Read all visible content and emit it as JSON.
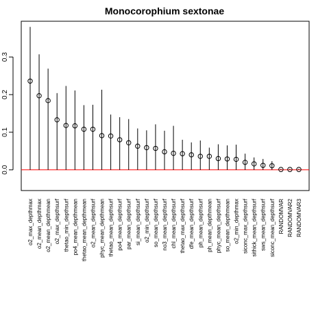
{
  "chart_data": {
    "type": "scatter",
    "title": "Monocorophium sextonae",
    "xlabel": "",
    "ylabel": "",
    "ylim": [
      -0.055,
      0.395
    ],
    "yticks": [
      "0.0",
      "0.1",
      "0.2",
      "0.3"
    ],
    "ytick_values": [
      0.0,
      0.1,
      0.2,
      0.3
    ],
    "grid": false,
    "reference_line": {
      "y": 0,
      "color": "#ff0000"
    },
    "marker_color": "#000000",
    "categories": [
      "o2_max_depthmax",
      "o2_mean_depthmax",
      "o2_mean_depthmean",
      "o2_max_depthsurf",
      "thetao_min_depthsurf",
      "po4_mean_depthmean",
      "thetao_mean_depthmean",
      "o2_mean_depthsurf",
      "phyc_mean_depthmean",
      "thetao_mean_depthsurf",
      "po4_mean_depthsurf",
      "par_mean_depthsurf",
      "si_mean_depthsurf",
      "o2_min_depthsurf",
      "so_mean_depthsurf",
      "no3_mean_depthsurf",
      "chl_mean_depthsurf",
      "thetao_max_depthsurf",
      "dfe_mean_depthsurf",
      "ph_mean_depthsurf",
      "ph_mean_depthmean",
      "phyc_mean_depthsurf",
      "so_mean_depthmean",
      "o2_min_depthmax",
      "siconc_max_depthsurf",
      "sithick_mean_depthsurf",
      "sws_mean_depthsurf",
      "siconc_mean_depthsurf",
      "RANDOMVAR",
      "RANDOMVAR2",
      "RANDOMVAR3"
    ],
    "values": [
      0.236,
      0.197,
      0.184,
      0.133,
      0.118,
      0.117,
      0.108,
      0.108,
      0.091,
      0.09,
      0.08,
      0.072,
      0.063,
      0.059,
      0.057,
      0.048,
      0.044,
      0.043,
      0.04,
      0.036,
      0.036,
      0.03,
      0.029,
      0.028,
      0.02,
      0.016,
      0.012,
      0.011,
      0.001,
      0.001,
      0.001
    ],
    "upper": [
      0.38,
      0.307,
      0.269,
      0.204,
      0.223,
      0.211,
      0.172,
      0.173,
      0.213,
      0.147,
      0.14,
      0.135,
      0.11,
      0.105,
      0.121,
      0.104,
      0.117,
      0.08,
      0.073,
      0.078,
      0.059,
      0.068,
      0.065,
      0.067,
      0.043,
      0.033,
      0.029,
      0.023,
      0.003,
      0.003,
      0.003
    ],
    "lower": [
      0,
      0,
      0,
      0,
      0,
      0,
      0,
      0,
      0,
      0,
      0,
      0,
      0,
      0,
      0,
      0,
      0,
      0,
      0,
      0,
      0,
      0,
      0,
      0,
      0,
      0,
      0,
      0,
      0,
      0,
      0
    ]
  }
}
